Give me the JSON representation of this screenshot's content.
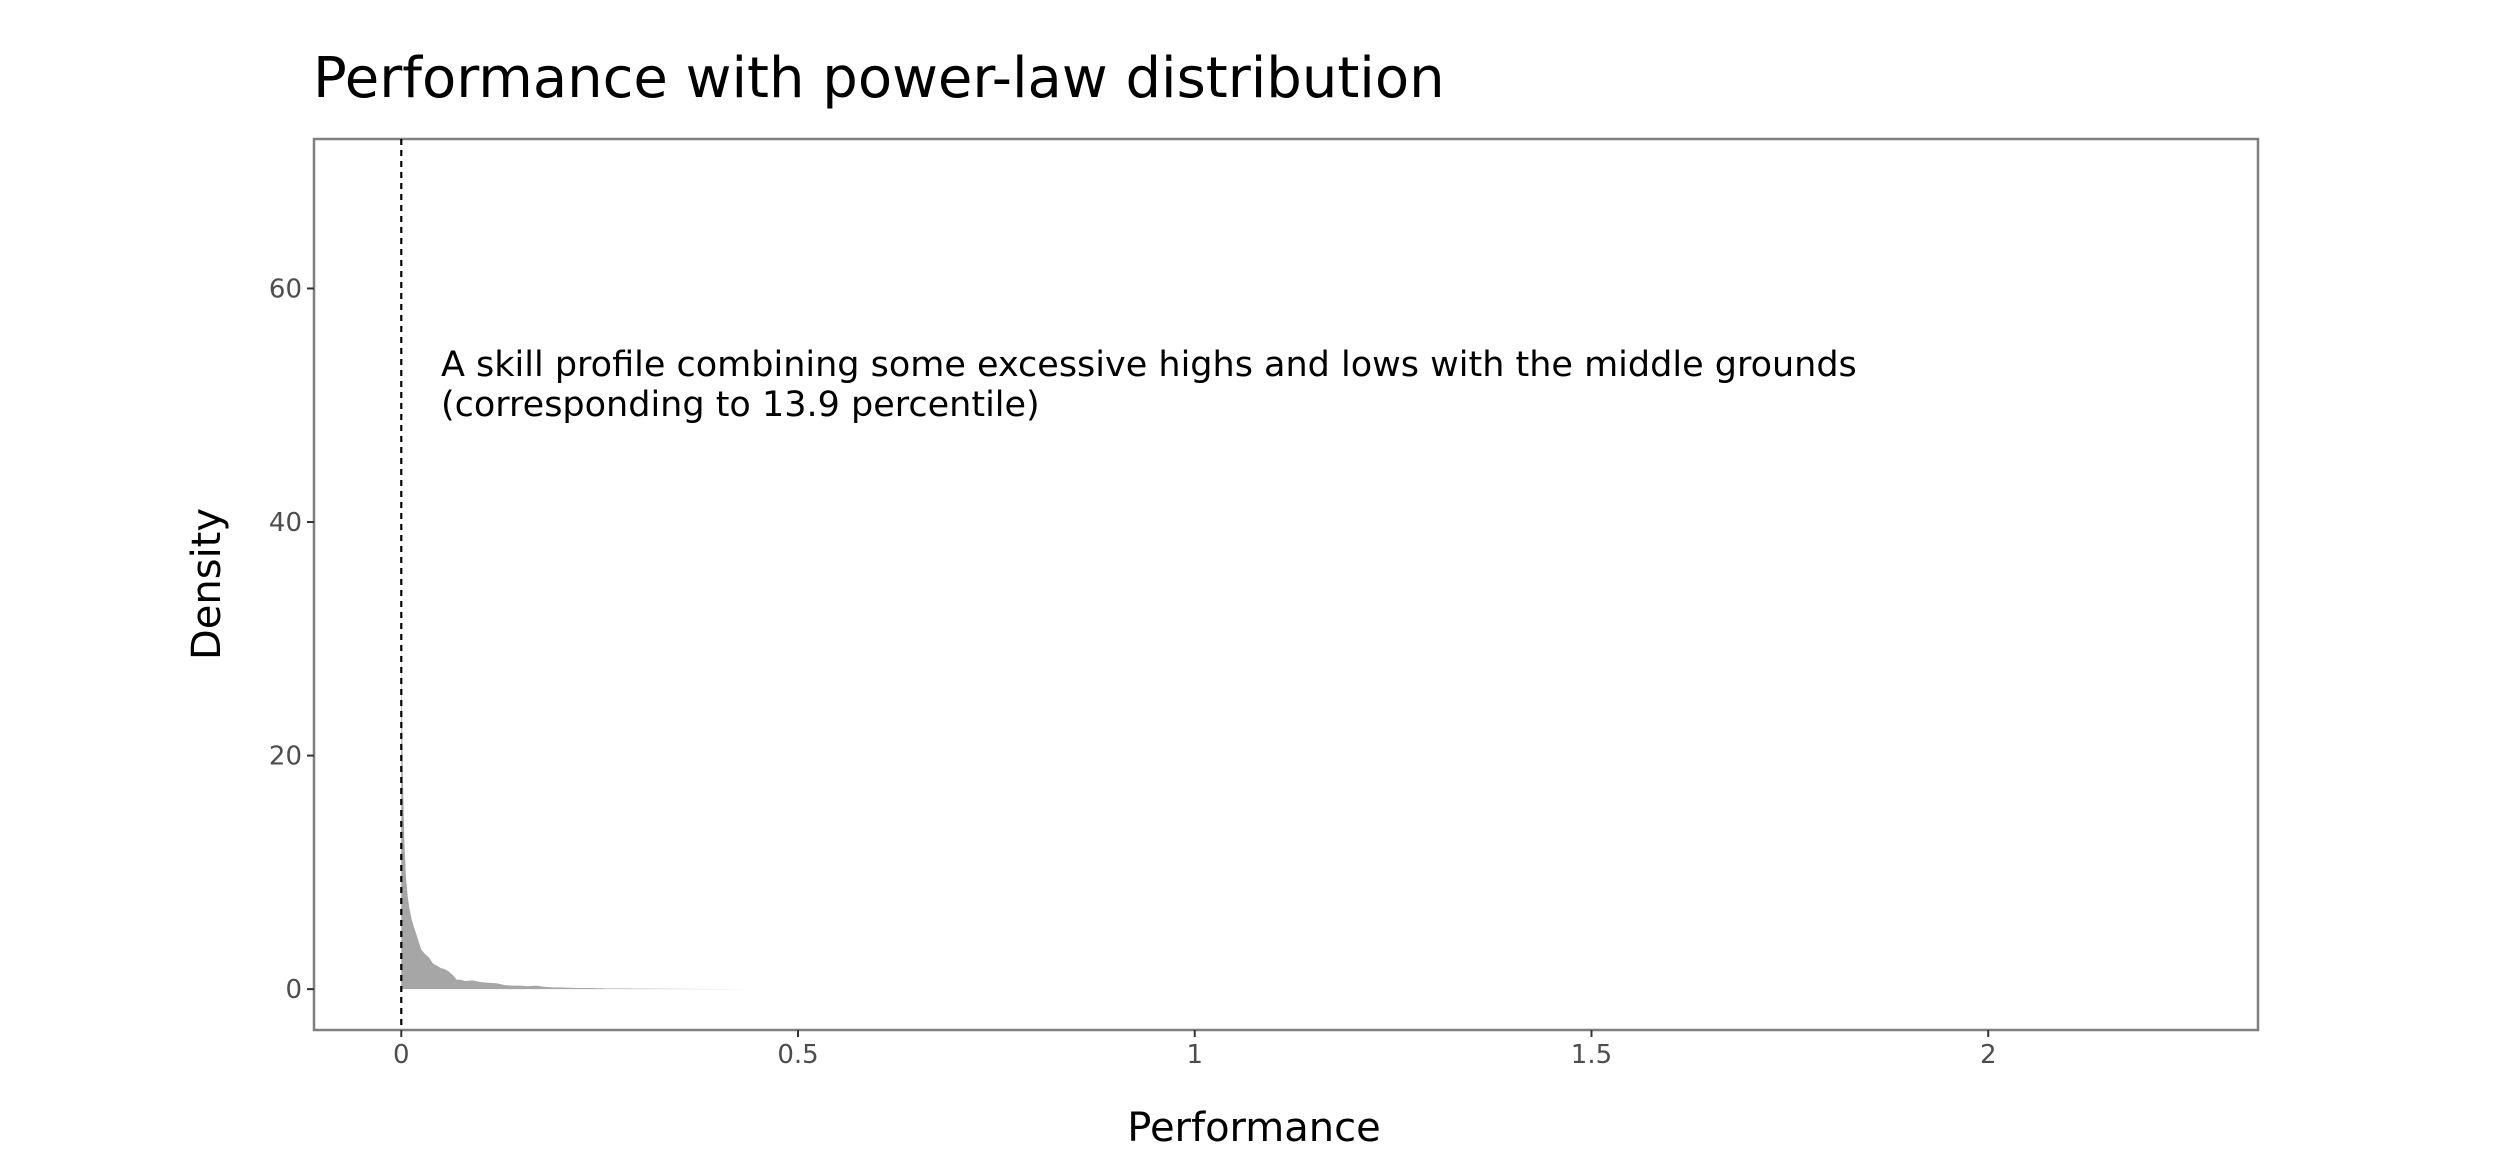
{
  "chart_data": {
    "type": "area",
    "title": "Performance with power-law distribution",
    "xlabel": "Performance",
    "ylabel": "Density",
    "xlim": [
      -0.11,
      2.34
    ],
    "ylim": [
      -3.5,
      72.8
    ],
    "x_ticks": [
      0,
      0.5,
      1,
      1.5,
      2
    ],
    "x_tick_labels": [
      "0",
      "0.5",
      "1",
      "1.5",
      "2"
    ],
    "y_ticks": [
      0,
      20,
      40,
      60
    ],
    "y_tick_labels": [
      "0",
      "20",
      "40",
      "60"
    ],
    "grid": false,
    "legend": "none",
    "series": [
      {
        "x": [
          0.0,
          0.002,
          0.004,
          0.006,
          0.008,
          0.01,
          0.013,
          0.016,
          0.02,
          0.025,
          0.03,
          0.035,
          0.04,
          0.045,
          0.05,
          0.055,
          0.06,
          0.065,
          0.07,
          0.075,
          0.08,
          0.09,
          0.1,
          0.11,
          0.12,
          0.13,
          0.14,
          0.15,
          0.16,
          0.17,
          0.18,
          0.19,
          0.2,
          0.22,
          0.24,
          0.26,
          0.28,
          0.3,
          0.33,
          0.36,
          0.4,
          0.45
        ],
        "y": [
          30.0,
          18.0,
          12.5,
          9.5,
          8.0,
          7.0,
          6.0,
          5.3,
          4.5,
          3.4,
          3.0,
          2.7,
          2.2,
          2.0,
          1.8,
          1.7,
          1.5,
          1.2,
          0.8,
          0.8,
          0.7,
          0.75,
          0.6,
          0.55,
          0.5,
          0.35,
          0.3,
          0.3,
          0.25,
          0.3,
          0.2,
          0.15,
          0.15,
          0.1,
          0.1,
          0.05,
          0.05,
          0.04,
          0.03,
          0.02,
          0.01,
          0.0
        ],
        "fill_color": "#a6a6a6"
      }
    ],
    "reference_line": {
      "x": 0.0,
      "style": "dashed",
      "color": "#000000"
    },
    "annotation": {
      "x": 0.05,
      "y": 52.5,
      "lines": [
        "A skill profile combining some excessive highs and lows with the middle grounds",
        "(corresponding to 13.9 percentile)"
      ]
    }
  }
}
